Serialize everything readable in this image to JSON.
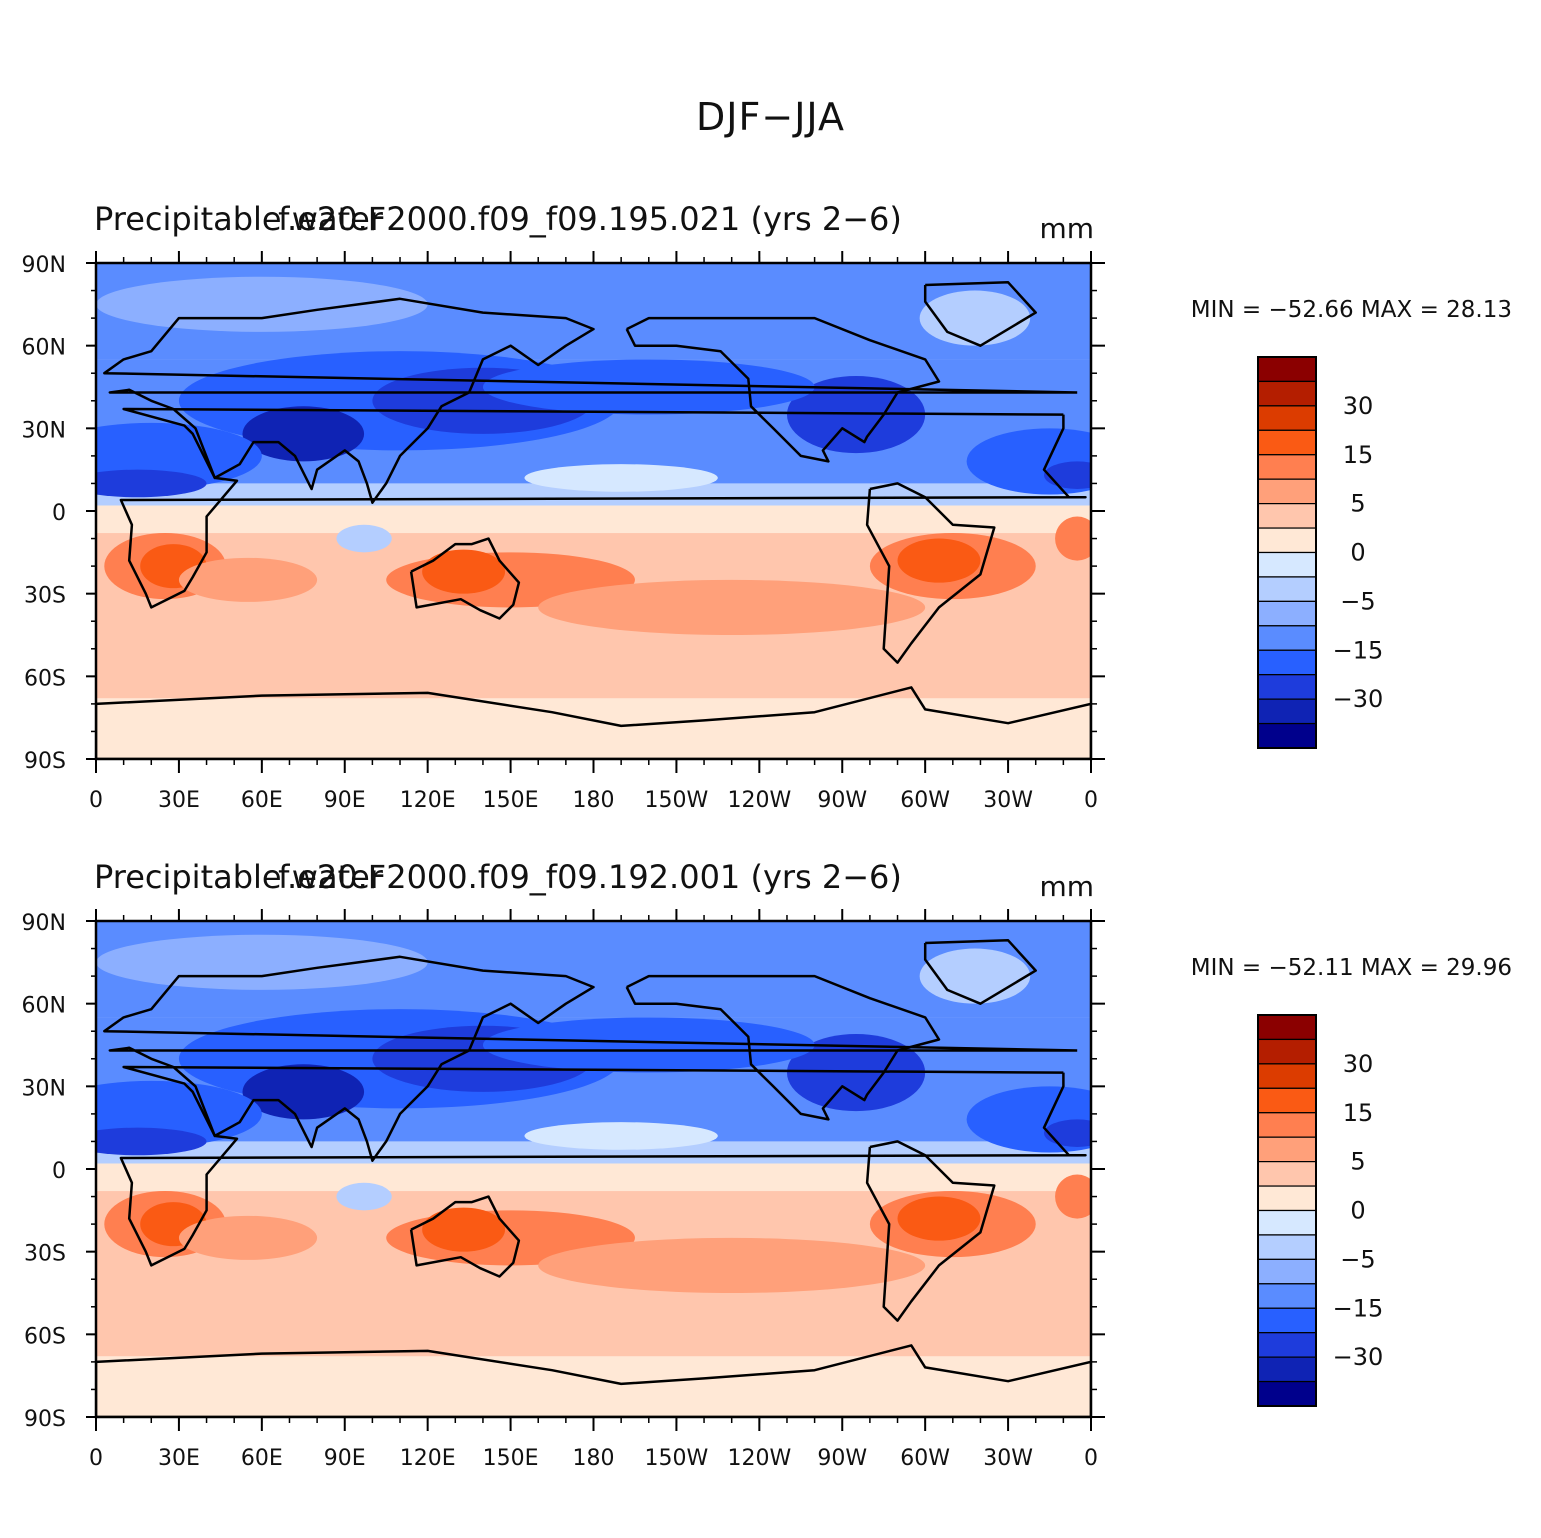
{
  "figure": {
    "title": "DJF−JJA"
  },
  "panels": [
    {
      "left_title": "Precipitable water",
      "center_title": "f.e20.F2000.f09_f09.195.021 (yrs 2−6)",
      "units": "mm",
      "min_label": "MIN = −52.66",
      "max_label": "MAX =   28.13",
      "min": -52.66,
      "max": 28.13
    },
    {
      "left_title": "Precipitable water",
      "center_title": "f.e20.F2000.f09_f09.192.001 (yrs 2−6)",
      "units": "mm",
      "min_label": "MIN = −52.11",
      "max_label": "MAX =   29.96",
      "min": -52.11,
      "max": 29.96
    }
  ],
  "axes": {
    "lat_labels": [
      "90N",
      "60N",
      "30N",
      "0",
      "30S",
      "60S",
      "90S"
    ],
    "lon_labels": [
      "0",
      "30E",
      "60E",
      "90E",
      "120E",
      "150E",
      "180",
      "150W",
      "120W",
      "90W",
      "60W",
      "30W",
      "0"
    ]
  },
  "colorbar": {
    "labels": [
      "30",
      "15",
      "5",
      "0",
      "−5",
      "−15",
      "−30"
    ],
    "colors": [
      "#8b0000",
      "#b41e00",
      "#dc3c00",
      "#fa5a14",
      "#ff7f50",
      "#ffa07a",
      "#ffc6ad",
      "#ffe8d6",
      "#d6e8ff",
      "#b4ceff",
      "#8cafff",
      "#5a8cff",
      "#2860ff",
      "#1e3cdc",
      "#0f23b4",
      "#00008c"
    ]
  }
}
